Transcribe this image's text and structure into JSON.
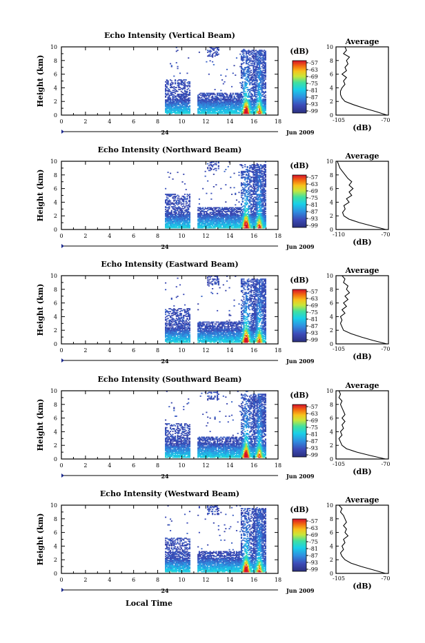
{
  "figure": {
    "date_label": "Jun 2009",
    "day_label": "24",
    "x_axis_label": "Local Time",
    "y_axis_label": "Height (km)",
    "colorbar_unit": "(dB)",
    "colorbar_ticks": [
      "-57",
      "-63",
      "-69",
      "-75",
      "-81",
      "-87",
      "-93",
      "-99"
    ],
    "avg_title": "Average",
    "avg_xlabel": "(dB)"
  },
  "chart_data": [
    {
      "type": "heatmap",
      "title": "Echo Intensity (Vertical Beam)",
      "xlabel": "Local Time",
      "ylabel": "Height (km)",
      "x_ticks": [
        "0",
        "2",
        "4",
        "6",
        "8",
        "10",
        "12",
        "14",
        "16",
        "18"
      ],
      "y_ticks": [
        "0",
        "2",
        "4",
        "6",
        "8",
        "10"
      ],
      "xlim": [
        0,
        18
      ],
      "ylim": [
        0,
        10
      ],
      "data_gaps_hours": [
        [
          0,
          8.6
        ],
        [
          10.6,
          11.2
        ]
      ],
      "peak_time_hours": 15.3,
      "avg_profile": {
        "xlim_labels": [
          "-105",
          "-70"
        ],
        "xlim": [
          -105,
          -70
        ],
        "height_km": [
          0,
          0.5,
          1,
          1.5,
          2,
          2.5,
          3,
          3.5,
          4,
          4.5,
          5,
          5.5,
          6,
          6.5,
          7,
          7.5,
          8,
          8.5,
          9,
          9.5,
          10
        ],
        "db": [
          -71,
          -78,
          -86,
          -93,
          -99,
          -101,
          -102,
          -102,
          -101,
          -99,
          -100,
          -98,
          -101,
          -98,
          -99,
          -97,
          -98,
          -96,
          -100,
          -98,
          -99
        ]
      }
    },
    {
      "type": "heatmap",
      "title": "Echo Intensity (Northward Beam)",
      "xlabel": "Local Time",
      "ylabel": "Height (km)",
      "x_ticks": [
        "0",
        "2",
        "4",
        "6",
        "8",
        "10",
        "12",
        "14",
        "16",
        "18"
      ],
      "y_ticks": [
        "0",
        "2",
        "4",
        "6",
        "8",
        "10"
      ],
      "xlim": [
        0,
        18
      ],
      "ylim": [
        0,
        10
      ],
      "data_gaps_hours": [
        [
          0,
          8.6
        ],
        [
          10.6,
          11.2
        ]
      ],
      "peak_time_hours": 15.3,
      "avg_profile": {
        "xlim_labels": [
          "-110",
          "-70"
        ],
        "xlim": [
          -110,
          -70
        ],
        "height_km": [
          0,
          0.5,
          1,
          1.5,
          2,
          2.5,
          3,
          3.5,
          4,
          4.5,
          5,
          5.5,
          6,
          6.5,
          7,
          7.5,
          8,
          8.5,
          9,
          9.5,
          10
        ],
        "db": [
          -72,
          -82,
          -92,
          -100,
          -104,
          -105,
          -103,
          -104,
          -100,
          -102,
          -98,
          -100,
          -97,
          -100,
          -98,
          -101,
          -103,
          -105,
          -107,
          -108,
          -109
        ]
      }
    },
    {
      "type": "heatmap",
      "title": "Echo Intensity (Eastward Beam)",
      "xlabel": "Local Time",
      "ylabel": "Height (km)",
      "x_ticks": [
        "0",
        "2",
        "4",
        "6",
        "8",
        "10",
        "12",
        "14",
        "16",
        "18"
      ],
      "y_ticks": [
        "0",
        "2",
        "4",
        "6",
        "8",
        "10"
      ],
      "xlim": [
        0,
        18
      ],
      "ylim": [
        0,
        10
      ],
      "data_gaps_hours": [
        [
          0,
          8.6
        ],
        [
          10.6,
          11.2
        ]
      ],
      "peak_time_hours": 15.3,
      "avg_profile": {
        "xlim_labels": [
          "-105",
          "-70"
        ],
        "xlim": [
          -105,
          -70
        ],
        "height_km": [
          0,
          0.5,
          1,
          1.5,
          2,
          2.5,
          3,
          3.5,
          4,
          4.5,
          5,
          5.5,
          6,
          6.5,
          7,
          7.5,
          8,
          8.5,
          9,
          9.5,
          10
        ],
        "db": [
          -71,
          -80,
          -88,
          -95,
          -100,
          -101,
          -102,
          -101,
          -102,
          -99,
          -101,
          -98,
          -100,
          -97,
          -99,
          -96,
          -98,
          -97,
          -100,
          -99,
          -101
        ]
      }
    },
    {
      "type": "heatmap",
      "title": "Echo Intensity (Southward Beam)",
      "xlabel": "Local Time",
      "ylabel": "Height (km)",
      "x_ticks": [
        "0",
        "2",
        "4",
        "6",
        "8",
        "10",
        "12",
        "14",
        "16",
        "18"
      ],
      "y_ticks": [
        "0",
        "2",
        "4",
        "6",
        "8",
        "10"
      ],
      "xlim": [
        0,
        18
      ],
      "ylim": [
        0,
        10
      ],
      "data_gaps_hours": [
        [
          0,
          8.6
        ],
        [
          10.6,
          11.2
        ]
      ],
      "peak_time_hours": 15.3,
      "avg_profile": {
        "xlim_labels": [
          "-105",
          "-70"
        ],
        "xlim": [
          -105,
          -70
        ],
        "height_km": [
          0,
          0.5,
          1,
          1.5,
          2,
          2.5,
          3,
          3.5,
          4,
          4.5,
          5,
          5.5,
          6,
          6.5,
          7,
          7.5,
          8,
          8.5,
          9,
          9.5,
          10
        ],
        "db": [
          -72,
          -82,
          -91,
          -98,
          -101,
          -102,
          -103,
          -101,
          -102,
          -100,
          -101,
          -99,
          -101,
          -99,
          -100,
          -101,
          -102,
          -101,
          -103,
          -102,
          -103
        ]
      }
    },
    {
      "type": "heatmap",
      "title": "Echo Intensity (Westward Beam)",
      "xlabel": "Local Time",
      "ylabel": "Height (km)",
      "x_ticks": [
        "0",
        "2",
        "4",
        "6",
        "8",
        "10",
        "12",
        "14",
        "16",
        "18"
      ],
      "y_ticks": [
        "0",
        "2",
        "4",
        "6",
        "8",
        "10"
      ],
      "xlim": [
        0,
        18
      ],
      "ylim": [
        0,
        10
      ],
      "data_gaps_hours": [
        [
          0,
          8.6
        ],
        [
          10.6,
          11.2
        ]
      ],
      "peak_time_hours": 15.3,
      "avg_profile": {
        "xlim_labels": [
          "-105",
          "-70"
        ],
        "xlim": [
          -105,
          -70
        ],
        "height_km": [
          0,
          0.5,
          1,
          1.5,
          2,
          2.5,
          3,
          3.5,
          4,
          4.5,
          5,
          5.5,
          6,
          6.5,
          7,
          7.5,
          8,
          8.5,
          9,
          9.5,
          10
        ],
        "db": [
          -72,
          -80,
          -88,
          -95,
          -99,
          -101,
          -102,
          -100,
          -101,
          -99,
          -100,
          -97,
          -99,
          -98,
          -100,
          -98,
          -99,
          -100,
          -102,
          -101,
          -103
        ]
      }
    }
  ]
}
